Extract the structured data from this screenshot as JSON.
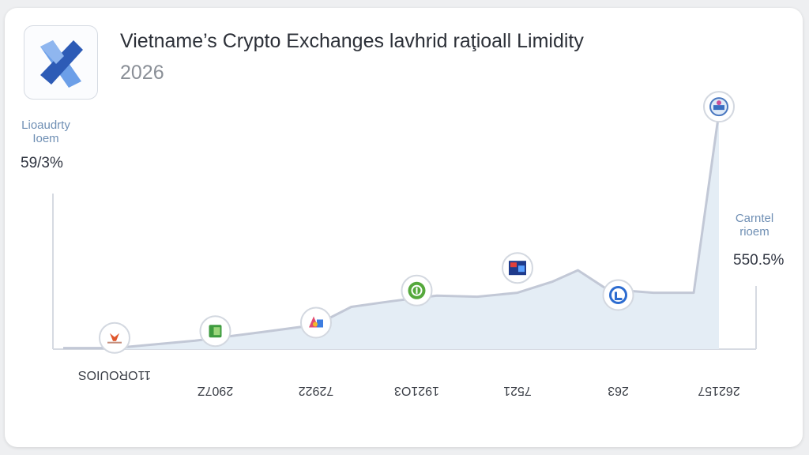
{
  "colors": {
    "line": "#c2c8d6",
    "area": "#e4edf5",
    "axis": "#d6dae2",
    "logo_dark": "#2d5bb6",
    "logo_light": "#6c9fe8"
  },
  "header": {
    "title": "Vietname’s Crypto Exchanges lavhrid raţioall Limidity",
    "subtitle": "2026",
    "logo_icon": "x-logo-icon"
  },
  "left_axis": {
    "label": "Lioaudrty\nIoem",
    "value": "59/3%"
  },
  "right_axis": {
    "label": "Carntel\nrioem",
    "value": "550.5%"
  },
  "chart_data": {
    "type": "area",
    "title": "Vietname’s Crypto Exchanges lavhrid raţioall Limidity",
    "subtitle": "2026",
    "categories": [
      "11OROUIOS",
      "2907Z",
      "72922",
      "1921O3",
      "7521",
      "263",
      "262157"
    ],
    "series": [
      {
        "name": "",
        "x": [
          0,
          0.8,
          1.45,
          2,
          2.35,
          2.75,
          3.2,
          3.6,
          4,
          4.35,
          4.6,
          4.9,
          5,
          5.35,
          5.75,
          6
        ],
        "values": [
          0.2,
          1.5,
          3.0,
          4.3,
          7.5,
          8.5,
          9.5,
          9.3,
          10.0,
          12.0,
          14.0,
          10.5,
          10.5,
          10.0,
          10.0,
          42.0
        ]
      }
    ],
    "markers": [
      {
        "x": 0,
        "value": 2.0,
        "icon": "exchange-badge-icon"
      },
      {
        "x": 1,
        "value": 3.2,
        "icon": "green-cube-icon"
      },
      {
        "x": 2,
        "value": 4.7,
        "icon": "colorful-shapes-icon"
      },
      {
        "x": 3,
        "value": 10.4,
        "icon": "green-circle-icon"
      },
      {
        "x": 4,
        "value": 14.4,
        "icon": "red-blue-screen-icon"
      },
      {
        "x": 5,
        "value": 9.6,
        "icon": "blue-circle-icon"
      },
      {
        "x": 6,
        "value": 43.0,
        "icon": "blue-emblem-icon"
      }
    ],
    "ylim": [
      0,
      44
    ],
    "grid": false,
    "legend": "none"
  }
}
